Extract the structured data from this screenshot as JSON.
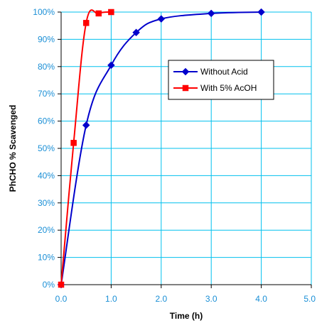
{
  "chart_data": {
    "type": "line",
    "xlabel": "Time (h)",
    "ylabel": "PhCHO % Scavenged",
    "xlim": [
      0,
      5
    ],
    "ylim": [
      0,
      100
    ],
    "x_ticks": [
      "0.0",
      "1.0",
      "2.0",
      "3.0",
      "4.0",
      "5.0"
    ],
    "y_ticks": [
      "0%",
      "10%",
      "20%",
      "30%",
      "40%",
      "50%",
      "60%",
      "70%",
      "80%",
      "90%",
      "100%"
    ],
    "grid": true,
    "legend_position": "right-middle",
    "series": [
      {
        "name": "Without Acid",
        "color": "#0000cc",
        "marker": "diamond",
        "x": [
          0,
          0.5,
          1.0,
          1.5,
          2.0,
          3.0,
          4.0
        ],
        "y": [
          0,
          58.5,
          80.5,
          92.5,
          97.5,
          99.5,
          100
        ]
      },
      {
        "name": "With 5% AcOH",
        "color": "#ff0000",
        "marker": "square",
        "x": [
          0,
          0.25,
          0.5,
          0.75,
          1.0
        ],
        "y": [
          0,
          52,
          96,
          99.5,
          100
        ]
      }
    ]
  },
  "colors": {
    "grid": "#00c0ee",
    "tick_label": "#1a8fd6"
  }
}
